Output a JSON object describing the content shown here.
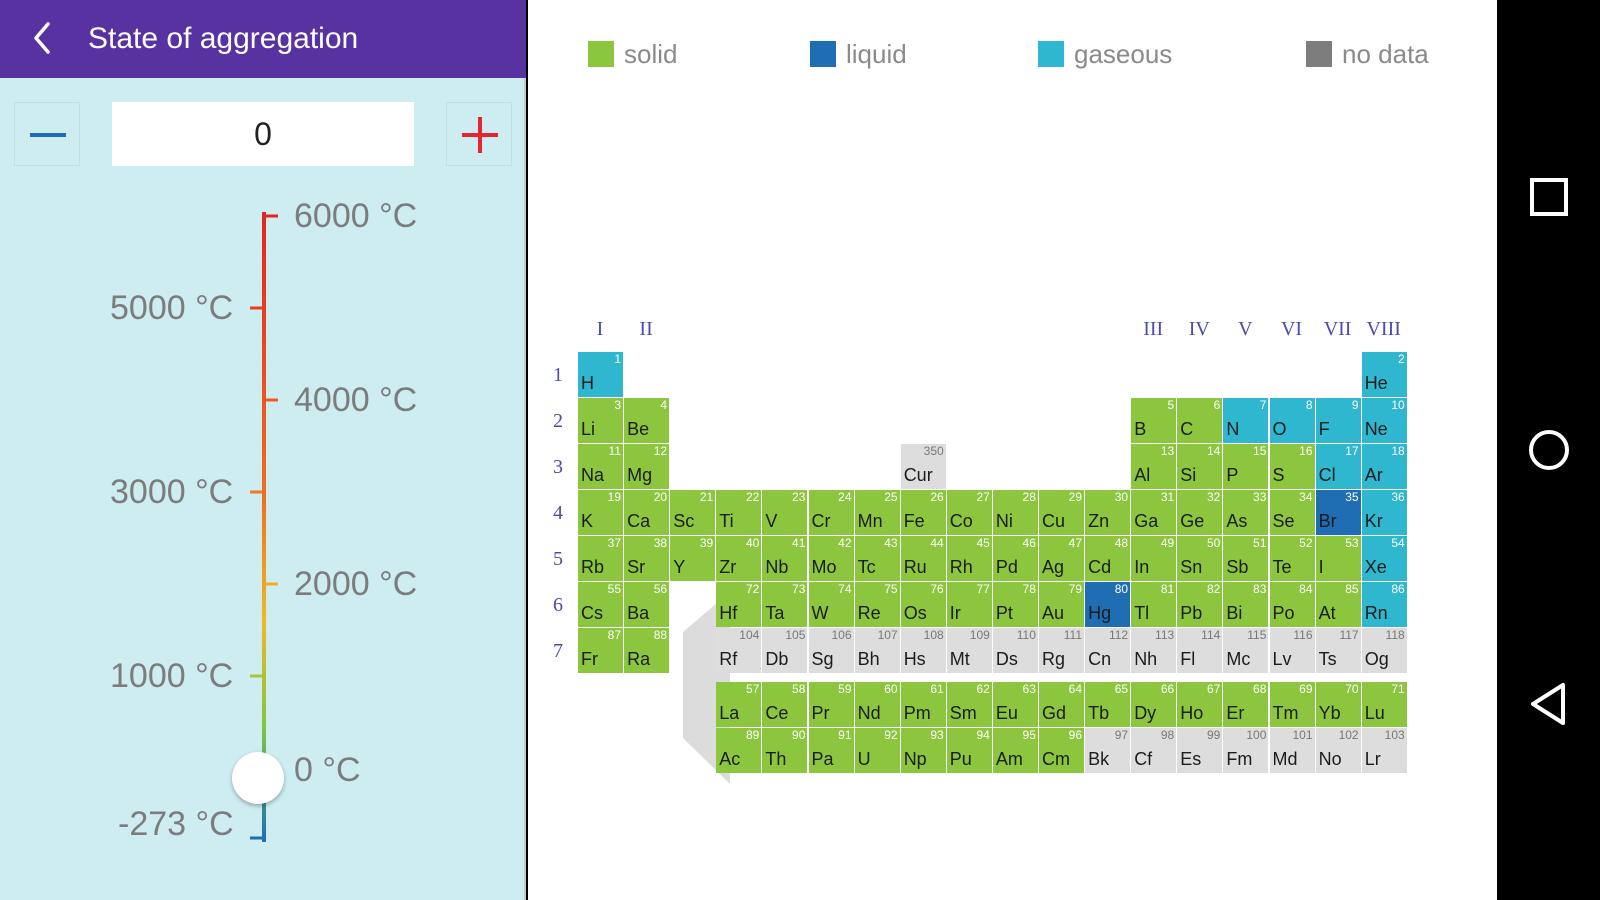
{
  "header": {
    "title": "State of aggregation"
  },
  "temperature": {
    "value": "0",
    "min_label": "-273 °C",
    "zero_label": "0 °C",
    "current_celsius": 0
  },
  "scale_labels": {
    "right": [
      "6000 °C",
      "4000 °C",
      "2000 °C"
    ],
    "left": [
      "5000 °C",
      "3000 °C",
      "1000 °C"
    ]
  },
  "legend": [
    {
      "label": "solid",
      "color": "#8cc63f"
    },
    {
      "label": "liquid",
      "color": "#1f6eb4"
    },
    {
      "label": "gaseous",
      "color": "#2fb7cf"
    },
    {
      "label": "no data",
      "color": "#7d7d7d"
    }
  ],
  "colors": {
    "accent": "#5832a0",
    "plus": "#e5262f",
    "minus": "#1f6eb4"
  },
  "groups": {
    "left": [
      "I",
      "II"
    ],
    "right": [
      "III",
      "IV",
      "V",
      "VI",
      "VII",
      "VIII"
    ]
  },
  "periods": [
    "1",
    "2",
    "3",
    "4",
    "5",
    "6",
    "7"
  ],
  "elements": [
    {
      "n": "1",
      "s": "H",
      "st": "gas",
      "r": 1,
      "c": 1
    },
    {
      "n": "2",
      "s": "He",
      "st": "gas",
      "r": 1,
      "c": 18
    },
    {
      "n": "3",
      "s": "Li",
      "st": "solid",
      "r": 2,
      "c": 1
    },
    {
      "n": "4",
      "s": "Be",
      "st": "solid",
      "r": 2,
      "c": 2
    },
    {
      "n": "5",
      "s": "B",
      "st": "solid",
      "r": 2,
      "c": 13
    },
    {
      "n": "6",
      "s": "C",
      "st": "solid",
      "r": 2,
      "c": 14
    },
    {
      "n": "7",
      "s": "N",
      "st": "gas",
      "r": 2,
      "c": 15
    },
    {
      "n": "8",
      "s": "O",
      "st": "gas",
      "r": 2,
      "c": 16
    },
    {
      "n": "9",
      "s": "F",
      "st": "gas",
      "r": 2,
      "c": 17
    },
    {
      "n": "10",
      "s": "Ne",
      "st": "gas",
      "r": 2,
      "c": 18
    },
    {
      "n": "11",
      "s": "Na",
      "st": "solid",
      "r": 3,
      "c": 1
    },
    {
      "n": "12",
      "s": "Mg",
      "st": "solid",
      "r": 3,
      "c": 2
    },
    {
      "n": "350",
      "s": "Cur",
      "st": "nodata",
      "r": 3,
      "c": 8
    },
    {
      "n": "13",
      "s": "Al",
      "st": "solid",
      "r": 3,
      "c": 13
    },
    {
      "n": "14",
      "s": "Si",
      "st": "solid",
      "r": 3,
      "c": 14
    },
    {
      "n": "15",
      "s": "P",
      "st": "solid",
      "r": 3,
      "c": 15
    },
    {
      "n": "16",
      "s": "S",
      "st": "solid",
      "r": 3,
      "c": 16
    },
    {
      "n": "17",
      "s": "Cl",
      "st": "gas",
      "r": 3,
      "c": 17
    },
    {
      "n": "18",
      "s": "Ar",
      "st": "gas",
      "r": 3,
      "c": 18
    },
    {
      "n": "19",
      "s": "K",
      "st": "solid",
      "r": 4,
      "c": 1
    },
    {
      "n": "20",
      "s": "Ca",
      "st": "solid",
      "r": 4,
      "c": 2
    },
    {
      "n": "21",
      "s": "Sc",
      "st": "solid",
      "r": 4,
      "c": 3
    },
    {
      "n": "22",
      "s": "Ti",
      "st": "solid",
      "r": 4,
      "c": 4
    },
    {
      "n": "23",
      "s": "V",
      "st": "solid",
      "r": 4,
      "c": 5
    },
    {
      "n": "24",
      "s": "Cr",
      "st": "solid",
      "r": 4,
      "c": 6
    },
    {
      "n": "25",
      "s": "Mn",
      "st": "solid",
      "r": 4,
      "c": 7
    },
    {
      "n": "26",
      "s": "Fe",
      "st": "solid",
      "r": 4,
      "c": 8
    },
    {
      "n": "27",
      "s": "Co",
      "st": "solid",
      "r": 4,
      "c": 9
    },
    {
      "n": "28",
      "s": "Ni",
      "st": "solid",
      "r": 4,
      "c": 10
    },
    {
      "n": "29",
      "s": "Cu",
      "st": "solid",
      "r": 4,
      "c": 11
    },
    {
      "n": "30",
      "s": "Zn",
      "st": "solid",
      "r": 4,
      "c": 12
    },
    {
      "n": "31",
      "s": "Ga",
      "st": "solid",
      "r": 4,
      "c": 13
    },
    {
      "n": "32",
      "s": "Ge",
      "st": "solid",
      "r": 4,
      "c": 14
    },
    {
      "n": "33",
      "s": "As",
      "st": "solid",
      "r": 4,
      "c": 15
    },
    {
      "n": "34",
      "s": "Se",
      "st": "solid",
      "r": 4,
      "c": 16
    },
    {
      "n": "35",
      "s": "Br",
      "st": "liquid",
      "r": 4,
      "c": 17
    },
    {
      "n": "36",
      "s": "Kr",
      "st": "gas",
      "r": 4,
      "c": 18
    },
    {
      "n": "37",
      "s": "Rb",
      "st": "solid",
      "r": 5,
      "c": 1
    },
    {
      "n": "38",
      "s": "Sr",
      "st": "solid",
      "r": 5,
      "c": 2
    },
    {
      "n": "39",
      "s": "Y",
      "st": "solid",
      "r": 5,
      "c": 3
    },
    {
      "n": "40",
      "s": "Zr",
      "st": "solid",
      "r": 5,
      "c": 4
    },
    {
      "n": "41",
      "s": "Nb",
      "st": "solid",
      "r": 5,
      "c": 5
    },
    {
      "n": "42",
      "s": "Mo",
      "st": "solid",
      "r": 5,
      "c": 6
    },
    {
      "n": "43",
      "s": "Tc",
      "st": "solid",
      "r": 5,
      "c": 7
    },
    {
      "n": "44",
      "s": "Ru",
      "st": "solid",
      "r": 5,
      "c": 8
    },
    {
      "n": "45",
      "s": "Rh",
      "st": "solid",
      "r": 5,
      "c": 9
    },
    {
      "n": "46",
      "s": "Pd",
      "st": "solid",
      "r": 5,
      "c": 10
    },
    {
      "n": "47",
      "s": "Ag",
      "st": "solid",
      "r": 5,
      "c": 11
    },
    {
      "n": "48",
      "s": "Cd",
      "st": "solid",
      "r": 5,
      "c": 12
    },
    {
      "n": "49",
      "s": "In",
      "st": "solid",
      "r": 5,
      "c": 13
    },
    {
      "n": "50",
      "s": "Sn",
      "st": "solid",
      "r": 5,
      "c": 14
    },
    {
      "n": "51",
      "s": "Sb",
      "st": "solid",
      "r": 5,
      "c": 15
    },
    {
      "n": "52",
      "s": "Te",
      "st": "solid",
      "r": 5,
      "c": 16
    },
    {
      "n": "53",
      "s": "I",
      "st": "solid",
      "r": 5,
      "c": 17
    },
    {
      "n": "54",
      "s": "Xe",
      "st": "gas",
      "r": 5,
      "c": 18
    },
    {
      "n": "55",
      "s": "Cs",
      "st": "solid",
      "r": 6,
      "c": 1
    },
    {
      "n": "56",
      "s": "Ba",
      "st": "solid",
      "r": 6,
      "c": 2
    },
    {
      "n": "72",
      "s": "Hf",
      "st": "solid",
      "r": 6,
      "c": 4
    },
    {
      "n": "73",
      "s": "Ta",
      "st": "solid",
      "r": 6,
      "c": 5
    },
    {
      "n": "74",
      "s": "W",
      "st": "solid",
      "r": 6,
      "c": 6
    },
    {
      "n": "75",
      "s": "Re",
      "st": "solid",
      "r": 6,
      "c": 7
    },
    {
      "n": "76",
      "s": "Os",
      "st": "solid",
      "r": 6,
      "c": 8
    },
    {
      "n": "77",
      "s": "Ir",
      "st": "solid",
      "r": 6,
      "c": 9
    },
    {
      "n": "78",
      "s": "Pt",
      "st": "solid",
      "r": 6,
      "c": 10
    },
    {
      "n": "79",
      "s": "Au",
      "st": "solid",
      "r": 6,
      "c": 11
    },
    {
      "n": "80",
      "s": "Hg",
      "st": "liquid",
      "r": 6,
      "c": 12
    },
    {
      "n": "81",
      "s": "Tl",
      "st": "solid",
      "r": 6,
      "c": 13
    },
    {
      "n": "82",
      "s": "Pb",
      "st": "solid",
      "r": 6,
      "c": 14
    },
    {
      "n": "83",
      "s": "Bi",
      "st": "solid",
      "r": 6,
      "c": 15
    },
    {
      "n": "84",
      "s": "Po",
      "st": "solid",
      "r": 6,
      "c": 16
    },
    {
      "n": "85",
      "s": "At",
      "st": "solid",
      "r": 6,
      "c": 17
    },
    {
      "n": "86",
      "s": "Rn",
      "st": "gas",
      "r": 6,
      "c": 18
    },
    {
      "n": "87",
      "s": "Fr",
      "st": "solid",
      "r": 7,
      "c": 1
    },
    {
      "n": "88",
      "s": "Ra",
      "st": "solid",
      "r": 7,
      "c": 2
    },
    {
      "n": "104",
      "s": "Rf",
      "st": "nodata",
      "r": 7,
      "c": 4
    },
    {
      "n": "105",
      "s": "Db",
      "st": "nodata",
      "r": 7,
      "c": 5
    },
    {
      "n": "106",
      "s": "Sg",
      "st": "nodata",
      "r": 7,
      "c": 6
    },
    {
      "n": "107",
      "s": "Bh",
      "st": "nodata",
      "r": 7,
      "c": 7
    },
    {
      "n": "108",
      "s": "Hs",
      "st": "nodata",
      "r": 7,
      "c": 8
    },
    {
      "n": "109",
      "s": "Mt",
      "st": "nodata",
      "r": 7,
      "c": 9
    },
    {
      "n": "110",
      "s": "Ds",
      "st": "nodata",
      "r": 7,
      "c": 10
    },
    {
      "n": "111",
      "s": "Rg",
      "st": "nodata",
      "r": 7,
      "c": 11
    },
    {
      "n": "112",
      "s": "Cn",
      "st": "nodata",
      "r": 7,
      "c": 12
    },
    {
      "n": "113",
      "s": "Nh",
      "st": "nodata",
      "r": 7,
      "c": 13
    },
    {
      "n": "114",
      "s": "Fl",
      "st": "nodata",
      "r": 7,
      "c": 14
    },
    {
      "n": "115",
      "s": "Mc",
      "st": "nodata",
      "r": 7,
      "c": 15
    },
    {
      "n": "116",
      "s": "Lv",
      "st": "nodata",
      "r": 7,
      "c": 16
    },
    {
      "n": "117",
      "s": "Ts",
      "st": "nodata",
      "r": 7,
      "c": 17
    },
    {
      "n": "118",
      "s": "Og",
      "st": "nodata",
      "r": 7,
      "c": 18
    },
    {
      "n": "57",
      "s": "La",
      "st": "solid",
      "r": 8,
      "c": 4
    },
    {
      "n": "58",
      "s": "Ce",
      "st": "solid",
      "r": 8,
      "c": 5
    },
    {
      "n": "59",
      "s": "Pr",
      "st": "solid",
      "r": 8,
      "c": 6
    },
    {
      "n": "60",
      "s": "Nd",
      "st": "solid",
      "r": 8,
      "c": 7
    },
    {
      "n": "61",
      "s": "Pm",
      "st": "solid",
      "r": 8,
      "c": 8
    },
    {
      "n": "62",
      "s": "Sm",
      "st": "solid",
      "r": 8,
      "c": 9
    },
    {
      "n": "63",
      "s": "Eu",
      "st": "solid",
      "r": 8,
      "c": 10
    },
    {
      "n": "64",
      "s": "Gd",
      "st": "solid",
      "r": 8,
      "c": 11
    },
    {
      "n": "65",
      "s": "Tb",
      "st": "solid",
      "r": 8,
      "c": 12
    },
    {
      "n": "66",
      "s": "Dy",
      "st": "solid",
      "r": 8,
      "c": 13
    },
    {
      "n": "67",
      "s": "Ho",
      "st": "solid",
      "r": 8,
      "c": 14
    },
    {
      "n": "68",
      "s": "Er",
      "st": "solid",
      "r": 8,
      "c": 15
    },
    {
      "n": "69",
      "s": "Tm",
      "st": "solid",
      "r": 8,
      "c": 16
    },
    {
      "n": "70",
      "s": "Yb",
      "st": "solid",
      "r": 8,
      "c": 17
    },
    {
      "n": "71",
      "s": "Lu",
      "st": "solid",
      "r": 8,
      "c": 18
    },
    {
      "n": "89",
      "s": "Ac",
      "st": "solid",
      "r": 9,
      "c": 4
    },
    {
      "n": "90",
      "s": "Th",
      "st": "solid",
      "r": 9,
      "c": 5
    },
    {
      "n": "91",
      "s": "Pa",
      "st": "solid",
      "r": 9,
      "c": 6
    },
    {
      "n": "92",
      "s": "U",
      "st": "solid",
      "r": 9,
      "c": 7
    },
    {
      "n": "93",
      "s": "Np",
      "st": "solid",
      "r": 9,
      "c": 8
    },
    {
      "n": "94",
      "s": "Pu",
      "st": "solid",
      "r": 9,
      "c": 9
    },
    {
      "n": "95",
      "s": "Am",
      "st": "solid",
      "r": 9,
      "c": 10
    },
    {
      "n": "96",
      "s": "Cm",
      "st": "solid",
      "r": 9,
      "c": 11
    },
    {
      "n": "97",
      "s": "Bk",
      "st": "nodata",
      "r": 9,
      "c": 12
    },
    {
      "n": "98",
      "s": "Cf",
      "st": "nodata",
      "r": 9,
      "c": 13
    },
    {
      "n": "99",
      "s": "Es",
      "st": "nodata",
      "r": 9,
      "c": 14
    },
    {
      "n": "100",
      "s": "Fm",
      "st": "nodata",
      "r": 9,
      "c": 15
    },
    {
      "n": "101",
      "s": "Md",
      "st": "nodata",
      "r": 9,
      "c": 16
    },
    {
      "n": "102",
      "s": "No",
      "st": "nodata",
      "r": 9,
      "c": 17
    },
    {
      "n": "103",
      "s": "Lr",
      "st": "nodata",
      "r": 9,
      "c": 18
    }
  ],
  "nav": {
    "icons": [
      "recents-square-icon",
      "home-circle-icon",
      "back-triangle-icon"
    ]
  }
}
